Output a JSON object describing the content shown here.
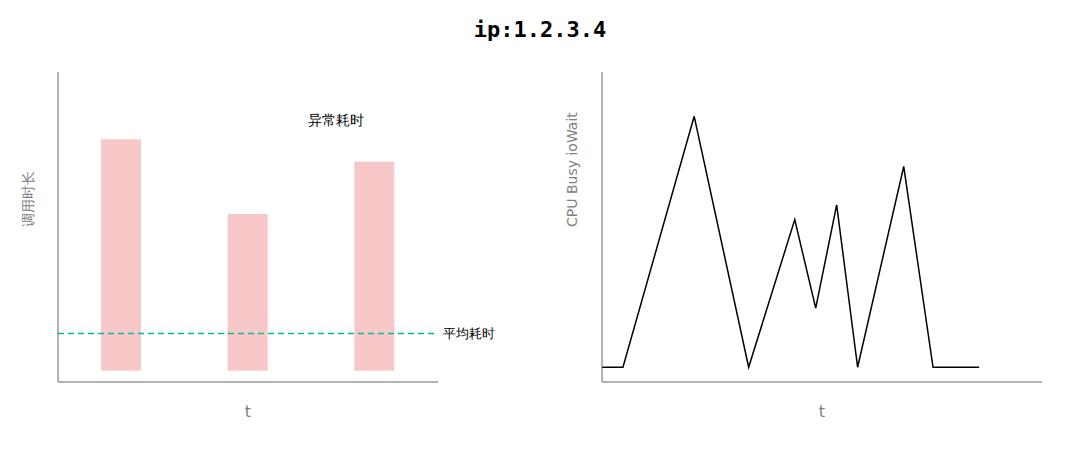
{
  "chart_data": [
    {
      "type": "bar",
      "title": "ip:1.2.3.4",
      "y_label": "调用时长",
      "x_label": "t",
      "categories": [
        null,
        null,
        null
      ],
      "values": [
        0.62,
        0.42,
        0.56
      ],
      "color": "#f8c8c8",
      "ylim": [
        -0.03,
        0.8
      ],
      "tick_labels": false,
      "grid": false,
      "reference_lines": [
        {
          "value": 0.1,
          "label": "平均耗时",
          "color": "#00bb99",
          "line_style": "dashed"
        }
      ],
      "annotations": [
        {
          "text": "异常耗时"
        }
      ]
    },
    {
      "type": "line",
      "y_label": "CPU Busy ioWait",
      "x_label": "t",
      "x": [
        0,
        0.5,
        2.2,
        3.5,
        3.5,
        4.6,
        5.1,
        5.6,
        6.1,
        6.1,
        7.2,
        7.9,
        9.0
      ],
      "values": [
        0,
        0,
        0.85,
        0,
        0,
        0.5,
        0.2,
        0.55,
        0,
        0,
        0.68,
        0,
        0
      ],
      "color": "#000000",
      "xlim": [
        0,
        10.5
      ],
      "ylim": [
        -0.05,
        1.0
      ],
      "tick_labels": false,
      "grid": false
    }
  ]
}
